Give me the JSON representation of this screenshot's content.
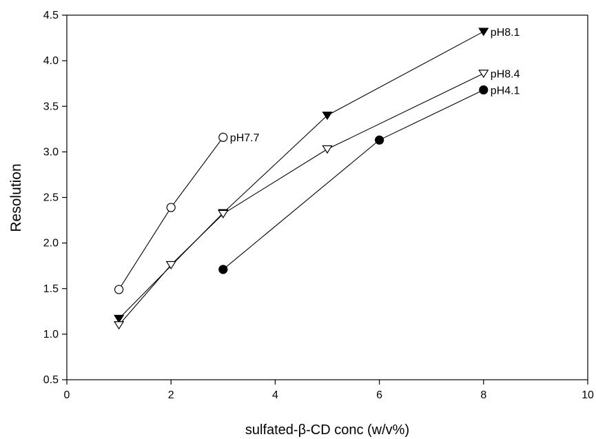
{
  "chart_data": {
    "type": "line",
    "title": "",
    "xlabel": "sulfated-β-CD conc (w/v%)",
    "ylabel": "Resolution",
    "xlim": [
      0,
      10
    ],
    "ylim": [
      0.5,
      4.5
    ],
    "x_ticks": [
      0,
      2,
      4,
      6,
      8,
      10
    ],
    "y_ticks": [
      0.5,
      1.0,
      1.5,
      2.0,
      2.5,
      3.0,
      3.5,
      4.0,
      4.5
    ],
    "x_tick_labels": [
      "0",
      "2",
      "4",
      "6",
      "8",
      "10"
    ],
    "y_tick_labels": [
      "0.5",
      "1.0",
      "1.5",
      "2.0",
      "2.5",
      "3.0",
      "3.5",
      "4.0",
      "4.5"
    ],
    "grid": false,
    "legend": "none (inline labels at series ends)",
    "series": [
      {
        "name": "pH7.7",
        "marker": "open-circle",
        "x": [
          1,
          2,
          3
        ],
        "y": [
          1.49,
          2.39,
          3.16
        ]
      },
      {
        "name": "pH8.1",
        "marker": "filled-triangle-down",
        "x": [
          1,
          3,
          5,
          8
        ],
        "y": [
          1.17,
          2.33,
          3.4,
          4.32
        ]
      },
      {
        "name": "pH8.4",
        "marker": "open-triangle-down",
        "x": [
          1,
          2,
          3,
          5,
          8
        ],
        "y": [
          1.1,
          1.76,
          2.32,
          3.03,
          3.86
        ]
      },
      {
        "name": "pH4.1",
        "marker": "filled-circle",
        "x": [
          3,
          6,
          8
        ],
        "y": [
          1.71,
          3.13,
          3.68
        ]
      }
    ]
  }
}
